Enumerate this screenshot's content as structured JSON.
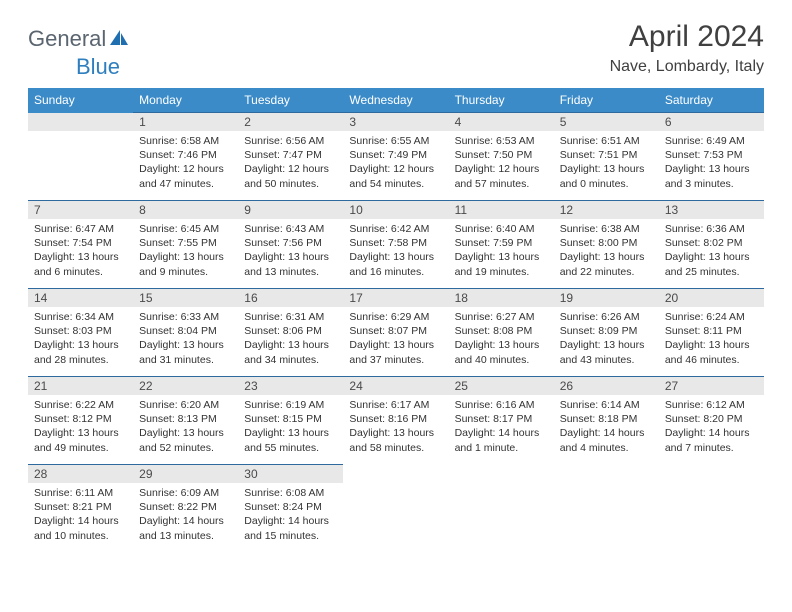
{
  "logo": {
    "general": "General",
    "blue": "Blue"
  },
  "title": "April 2024",
  "location": "Nave, Lombardy, Italy",
  "colors": {
    "header_bg": "#3b8bc9",
    "header_text": "#ffffff",
    "daynum_bg": "#e8e8e8",
    "border": "#2f6a9e",
    "text": "#333333",
    "logo_gray": "#5a6570",
    "logo_blue": "#2f7fbf"
  },
  "weekdays": [
    "Sunday",
    "Monday",
    "Tuesday",
    "Wednesday",
    "Thursday",
    "Friday",
    "Saturday"
  ],
  "weeks": [
    [
      null,
      {
        "n": "1",
        "sr": "6:58 AM",
        "ss": "7:46 PM",
        "dl": "12 hours and 47 minutes."
      },
      {
        "n": "2",
        "sr": "6:56 AM",
        "ss": "7:47 PM",
        "dl": "12 hours and 50 minutes."
      },
      {
        "n": "3",
        "sr": "6:55 AM",
        "ss": "7:49 PM",
        "dl": "12 hours and 54 minutes."
      },
      {
        "n": "4",
        "sr": "6:53 AM",
        "ss": "7:50 PM",
        "dl": "12 hours and 57 minutes."
      },
      {
        "n": "5",
        "sr": "6:51 AM",
        "ss": "7:51 PM",
        "dl": "13 hours and 0 minutes."
      },
      {
        "n": "6",
        "sr": "6:49 AM",
        "ss": "7:53 PM",
        "dl": "13 hours and 3 minutes."
      }
    ],
    [
      {
        "n": "7",
        "sr": "6:47 AM",
        "ss": "7:54 PM",
        "dl": "13 hours and 6 minutes."
      },
      {
        "n": "8",
        "sr": "6:45 AM",
        "ss": "7:55 PM",
        "dl": "13 hours and 9 minutes."
      },
      {
        "n": "9",
        "sr": "6:43 AM",
        "ss": "7:56 PM",
        "dl": "13 hours and 13 minutes."
      },
      {
        "n": "10",
        "sr": "6:42 AM",
        "ss": "7:58 PM",
        "dl": "13 hours and 16 minutes."
      },
      {
        "n": "11",
        "sr": "6:40 AM",
        "ss": "7:59 PM",
        "dl": "13 hours and 19 minutes."
      },
      {
        "n": "12",
        "sr": "6:38 AM",
        "ss": "8:00 PM",
        "dl": "13 hours and 22 minutes."
      },
      {
        "n": "13",
        "sr": "6:36 AM",
        "ss": "8:02 PM",
        "dl": "13 hours and 25 minutes."
      }
    ],
    [
      {
        "n": "14",
        "sr": "6:34 AM",
        "ss": "8:03 PM",
        "dl": "13 hours and 28 minutes."
      },
      {
        "n": "15",
        "sr": "6:33 AM",
        "ss": "8:04 PM",
        "dl": "13 hours and 31 minutes."
      },
      {
        "n": "16",
        "sr": "6:31 AM",
        "ss": "8:06 PM",
        "dl": "13 hours and 34 minutes."
      },
      {
        "n": "17",
        "sr": "6:29 AM",
        "ss": "8:07 PM",
        "dl": "13 hours and 37 minutes."
      },
      {
        "n": "18",
        "sr": "6:27 AM",
        "ss": "8:08 PM",
        "dl": "13 hours and 40 minutes."
      },
      {
        "n": "19",
        "sr": "6:26 AM",
        "ss": "8:09 PM",
        "dl": "13 hours and 43 minutes."
      },
      {
        "n": "20",
        "sr": "6:24 AM",
        "ss": "8:11 PM",
        "dl": "13 hours and 46 minutes."
      }
    ],
    [
      {
        "n": "21",
        "sr": "6:22 AM",
        "ss": "8:12 PM",
        "dl": "13 hours and 49 minutes."
      },
      {
        "n": "22",
        "sr": "6:20 AM",
        "ss": "8:13 PM",
        "dl": "13 hours and 52 minutes."
      },
      {
        "n": "23",
        "sr": "6:19 AM",
        "ss": "8:15 PM",
        "dl": "13 hours and 55 minutes."
      },
      {
        "n": "24",
        "sr": "6:17 AM",
        "ss": "8:16 PM",
        "dl": "13 hours and 58 minutes."
      },
      {
        "n": "25",
        "sr": "6:16 AM",
        "ss": "8:17 PM",
        "dl": "14 hours and 1 minute."
      },
      {
        "n": "26",
        "sr": "6:14 AM",
        "ss": "8:18 PM",
        "dl": "14 hours and 4 minutes."
      },
      {
        "n": "27",
        "sr": "6:12 AM",
        "ss": "8:20 PM",
        "dl": "14 hours and 7 minutes."
      }
    ],
    [
      {
        "n": "28",
        "sr": "6:11 AM",
        "ss": "8:21 PM",
        "dl": "14 hours and 10 minutes."
      },
      {
        "n": "29",
        "sr": "6:09 AM",
        "ss": "8:22 PM",
        "dl": "14 hours and 13 minutes."
      },
      {
        "n": "30",
        "sr": "6:08 AM",
        "ss": "8:24 PM",
        "dl": "14 hours and 15 minutes."
      },
      null,
      null,
      null,
      null
    ]
  ],
  "labels": {
    "sunrise": "Sunrise:",
    "sunset": "Sunset:",
    "daylight": "Daylight:"
  }
}
